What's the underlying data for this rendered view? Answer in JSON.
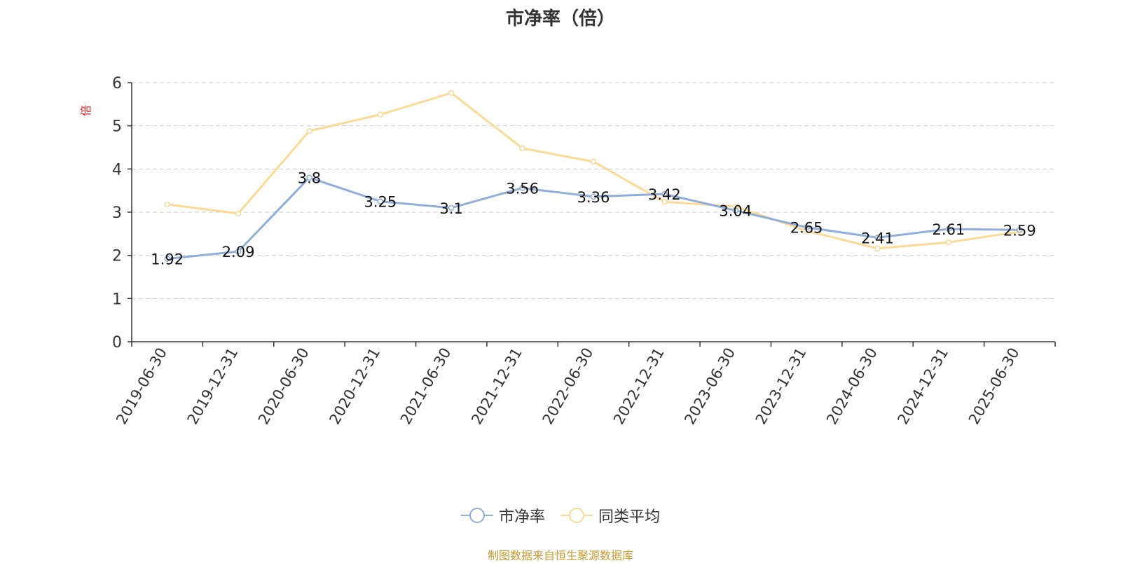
{
  "title": "市净率（倍）",
  "source_note": "制图数据来自恒生聚源数据库",
  "colors": {
    "series1": "#8eaedb",
    "series2": "#fcd994",
    "unit": "#e02020",
    "axis": "#333333",
    "grid": "#cccccc"
  },
  "chart_data": {
    "type": "line",
    "title": "市净率（倍）",
    "ylabel": "倍",
    "ylim": [
      0,
      6
    ],
    "yticks": [
      0,
      1,
      2,
      3,
      4,
      5,
      6
    ],
    "grid": true,
    "legend_position": "bottom",
    "categories": [
      "2019-06-30",
      "2019-12-31",
      "2020-06-30",
      "2020-12-31",
      "2021-06-30",
      "2021-12-31",
      "2022-06-30",
      "2022-12-31",
      "2023-06-30",
      "2023-12-31",
      "2024-06-30",
      "2024-12-31",
      "2025-06-30"
    ],
    "series": [
      {
        "name": "市净率",
        "values": [
          1.92,
          2.09,
          3.8,
          3.25,
          3.1,
          3.56,
          3.36,
          3.42,
          3.04,
          2.65,
          2.41,
          2.61,
          2.59
        ],
        "labels": [
          "1.92",
          "2.09",
          "3.8",
          "3.25",
          "3.1",
          "3.56",
          "3.36",
          "3.42",
          "3.04",
          "2.65",
          "2.41",
          "2.61",
          "2.59"
        ]
      },
      {
        "name": "同类平均",
        "values": [
          3.18,
          2.97,
          4.88,
          5.26,
          5.76,
          4.48,
          4.17,
          3.24,
          3.13,
          2.57,
          2.16,
          2.3,
          2.55
        ]
      }
    ]
  }
}
